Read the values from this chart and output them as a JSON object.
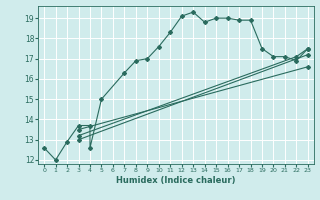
{
  "xlabel": "Humidex (Indice chaleur)",
  "xlim": [
    -0.5,
    23.5
  ],
  "ylim": [
    11.8,
    19.6
  ],
  "xticks": [
    0,
    1,
    2,
    3,
    4,
    5,
    6,
    7,
    8,
    9,
    10,
    11,
    12,
    13,
    14,
    15,
    16,
    17,
    18,
    19,
    20,
    21,
    22,
    23
  ],
  "yticks": [
    12,
    13,
    14,
    15,
    16,
    17,
    18,
    19
  ],
  "background_color": "#d0ecec",
  "grid_color": "#b8d8d8",
  "line_color": "#2a6b5e",
  "curve1_x": [
    0,
    1,
    2,
    3,
    4,
    4,
    5,
    7,
    8,
    9,
    10,
    11,
    12,
    13,
    14,
    15,
    16,
    17,
    18,
    19,
    20,
    21,
    22,
    23
  ],
  "curve1_y": [
    12.6,
    12.0,
    12.9,
    13.7,
    13.7,
    12.6,
    15.0,
    16.3,
    16.9,
    17.0,
    17.6,
    18.3,
    19.1,
    19.3,
    18.8,
    19.0,
    19.0,
    18.9,
    18.9,
    17.5,
    17.1,
    17.1,
    16.9,
    17.5
  ],
  "curve2_x": [
    3,
    22,
    23
  ],
  "curve2_y": [
    13.2,
    17.1,
    17.5
  ],
  "curve3_x": [
    3,
    23
  ],
  "curve3_y": [
    13.0,
    17.2
  ],
  "curve4_x": [
    3,
    23
  ],
  "curve4_y": [
    13.5,
    16.6
  ]
}
